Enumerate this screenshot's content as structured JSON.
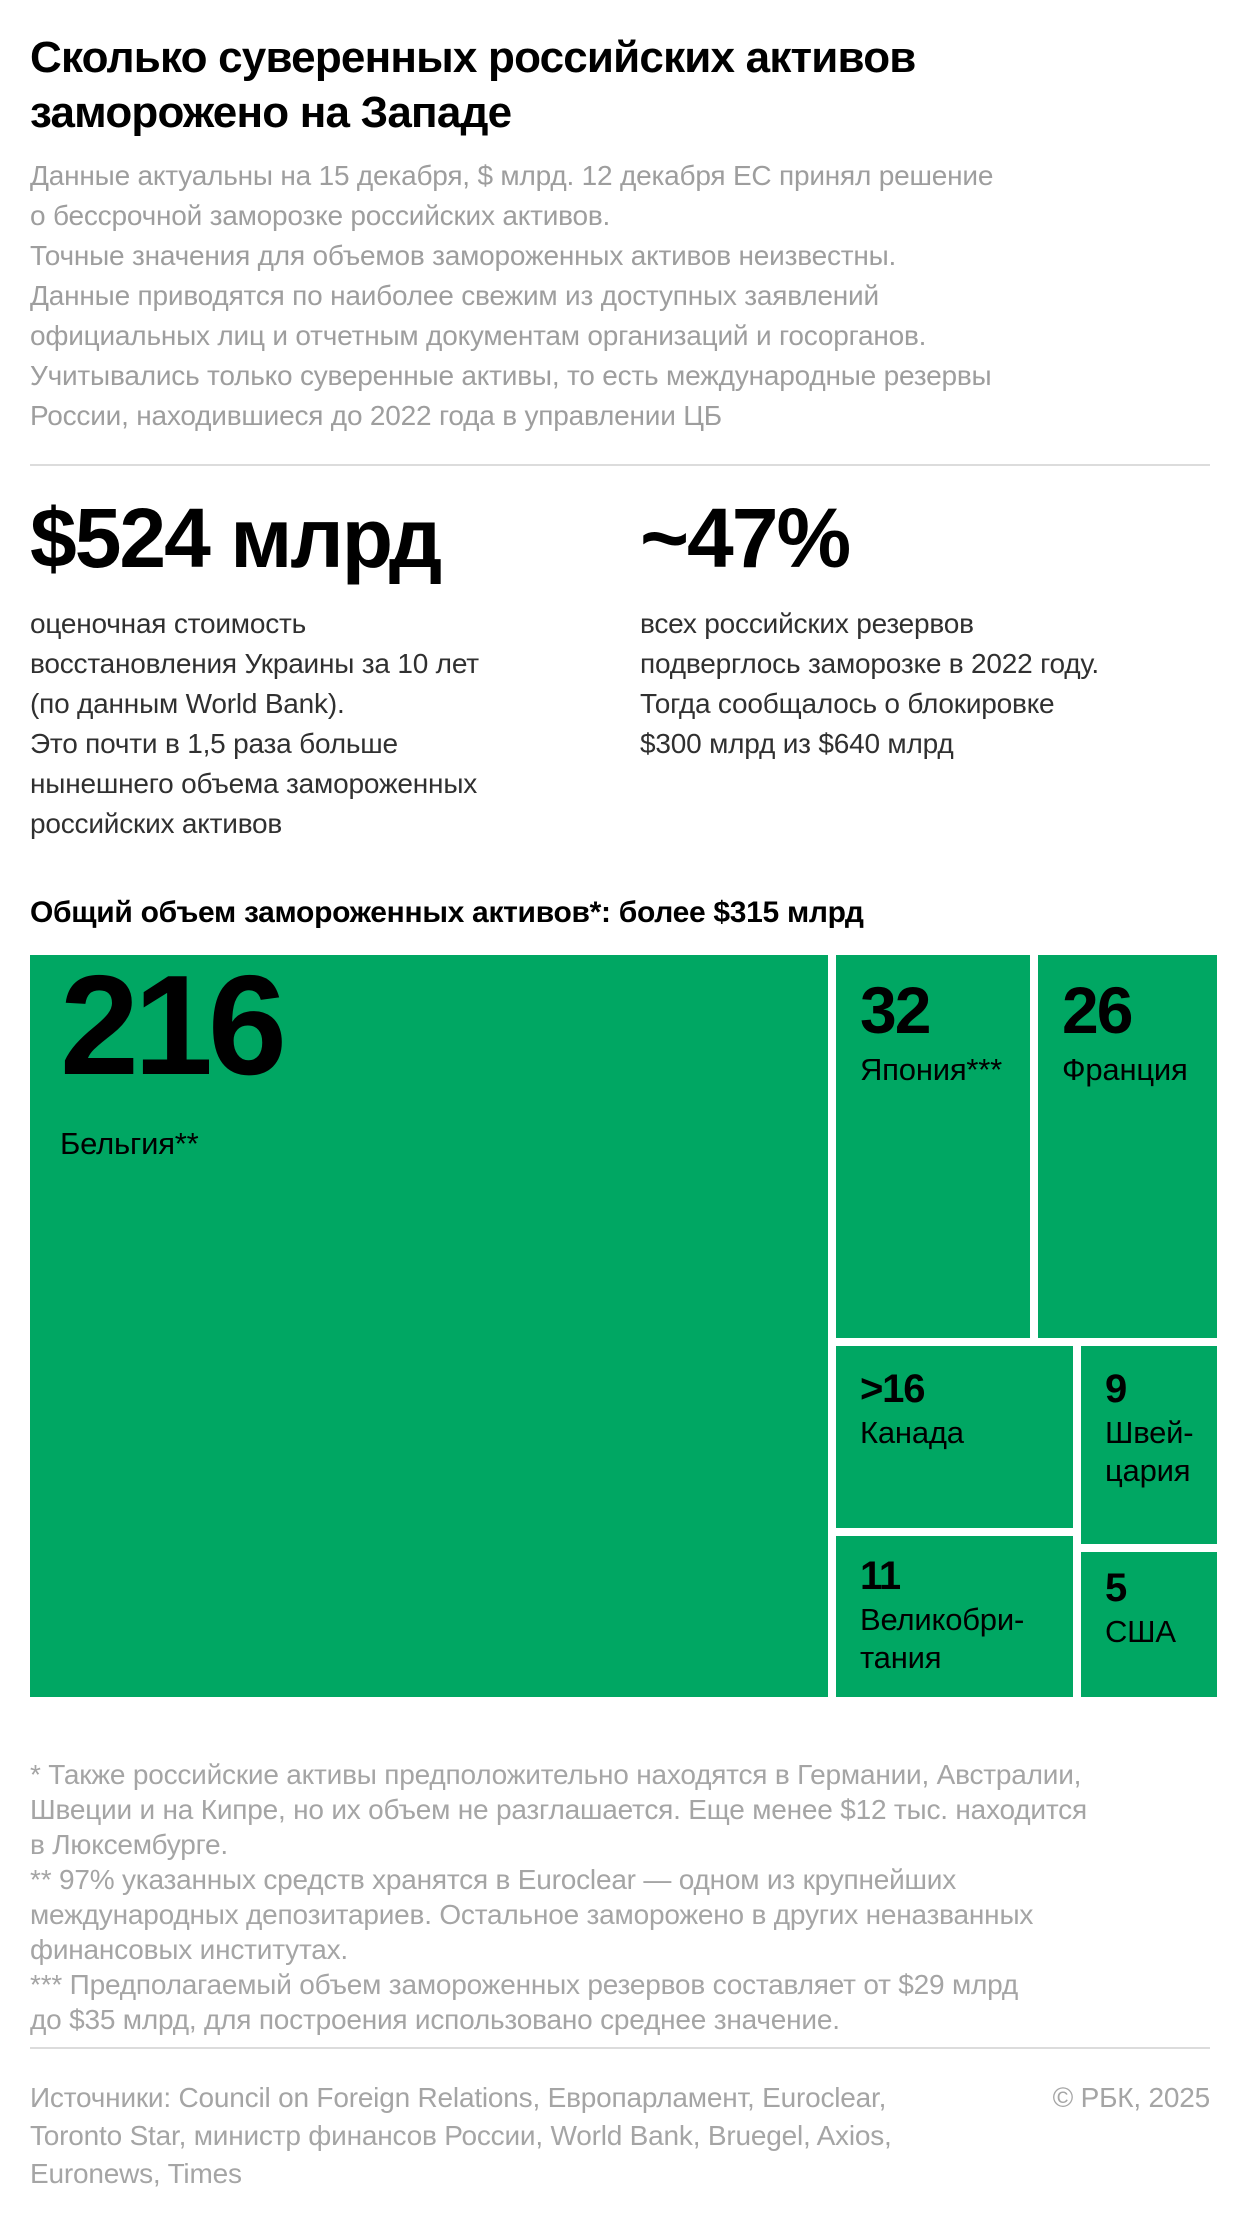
{
  "page": {
    "title_lines": [
      "Сколько суверенных российских активов",
      "заморожено на Западе"
    ],
    "intro_lines": [
      "Данные актуальны на 15 декабря, $ млрд. 12 декабря ЕС принял решение",
      "о бессрочной заморозке российских активов.",
      "Точные значения для объемов замороженных активов неизвестны.",
      "Данные приводятся по наиболее свежим из доступных заявлений",
      "официальных лиц и отчетным документам организаций и госорганов.",
      "Учитывались только суверенные активы, то есть международные резервы",
      "России, находившиеся до 2022 года в управлении ЦБ"
    ],
    "stats": [
      {
        "value": "$524 млрд",
        "description_lines": [
          "оценочная стоимость",
          "восстановления Украины за 10 лет",
          "(по данным World Bank).",
          "Это почти в 1,5 раза больше",
          "нынешнего объема замороженных",
          "российских активов"
        ]
      },
      {
        "value": "~47%",
        "description_lines": [
          "всех российских резервов",
          "подверглось заморозке в 2022 году.",
          "Тогда сообщалось о блокировке",
          "$300 млрд из $640 млрд"
        ]
      }
    ],
    "chart_heading": "Общий объем замороженных активов*: более $315 млрд",
    "footnote_lines": [
      "* Также российские активы предположительно находятся в Германии, Австралии,",
      "Швеции и на Кипре, но их объем не разглашается. Еще менее $12 тыс. находится",
      "в Люксембурге.",
      "** 97% указанных средств хранятся в Euroclear — одном из крупнейших",
      "международных депозитариев. Остальное заморожено в других неназванных",
      "финансовых институтах.",
      "*** Предполагаемый объем замороженных резервов составляет от $29 млрд",
      "до $35 млрд, для построения использовано среднее значение."
    ],
    "sources_lines": [
      "Источники: Council on Foreign Relations, Европарламент, Euroclear,",
      "Toronto Star, министр финансов России, World Bank, Bruegel, Axios,",
      "Euronews, Times"
    ],
    "copyright": "© РБК, 2025"
  },
  "chart_data": {
    "type": "treemap",
    "title": "Общий объем замороженных активов*: более $315 млрд",
    "unit": "$ млрд",
    "total": ">315",
    "items": [
      {
        "label": "Бельгия**",
        "display_label": "Бельгия**",
        "value_label": "216",
        "value": 216
      },
      {
        "label": "Япония***",
        "display_label": "Япония***",
        "value_label": "32",
        "value": 32
      },
      {
        "label": "Франция",
        "display_label": "Франция",
        "value_label": "26",
        "value": 26
      },
      {
        "label": "Канада",
        "display_label": "Канада",
        "value_label": ">16",
        "value": 16
      },
      {
        "label": "Великобритания",
        "display_label": "Великобри-\nтания",
        "value_label": "11",
        "value": 11
      },
      {
        "label": "Швейцария",
        "display_label": "Швей-\nцария",
        "value_label": "9",
        "value": 9
      },
      {
        "label": "США",
        "display_label": "США",
        "value_label": "5",
        "value": 5
      }
    ],
    "colors": {
      "cell_fill": "#00a763",
      "cell_text": "#000000",
      "background": "#ffffff",
      "muted_text": "#9e9e9e",
      "body_text": "#303030"
    }
  }
}
